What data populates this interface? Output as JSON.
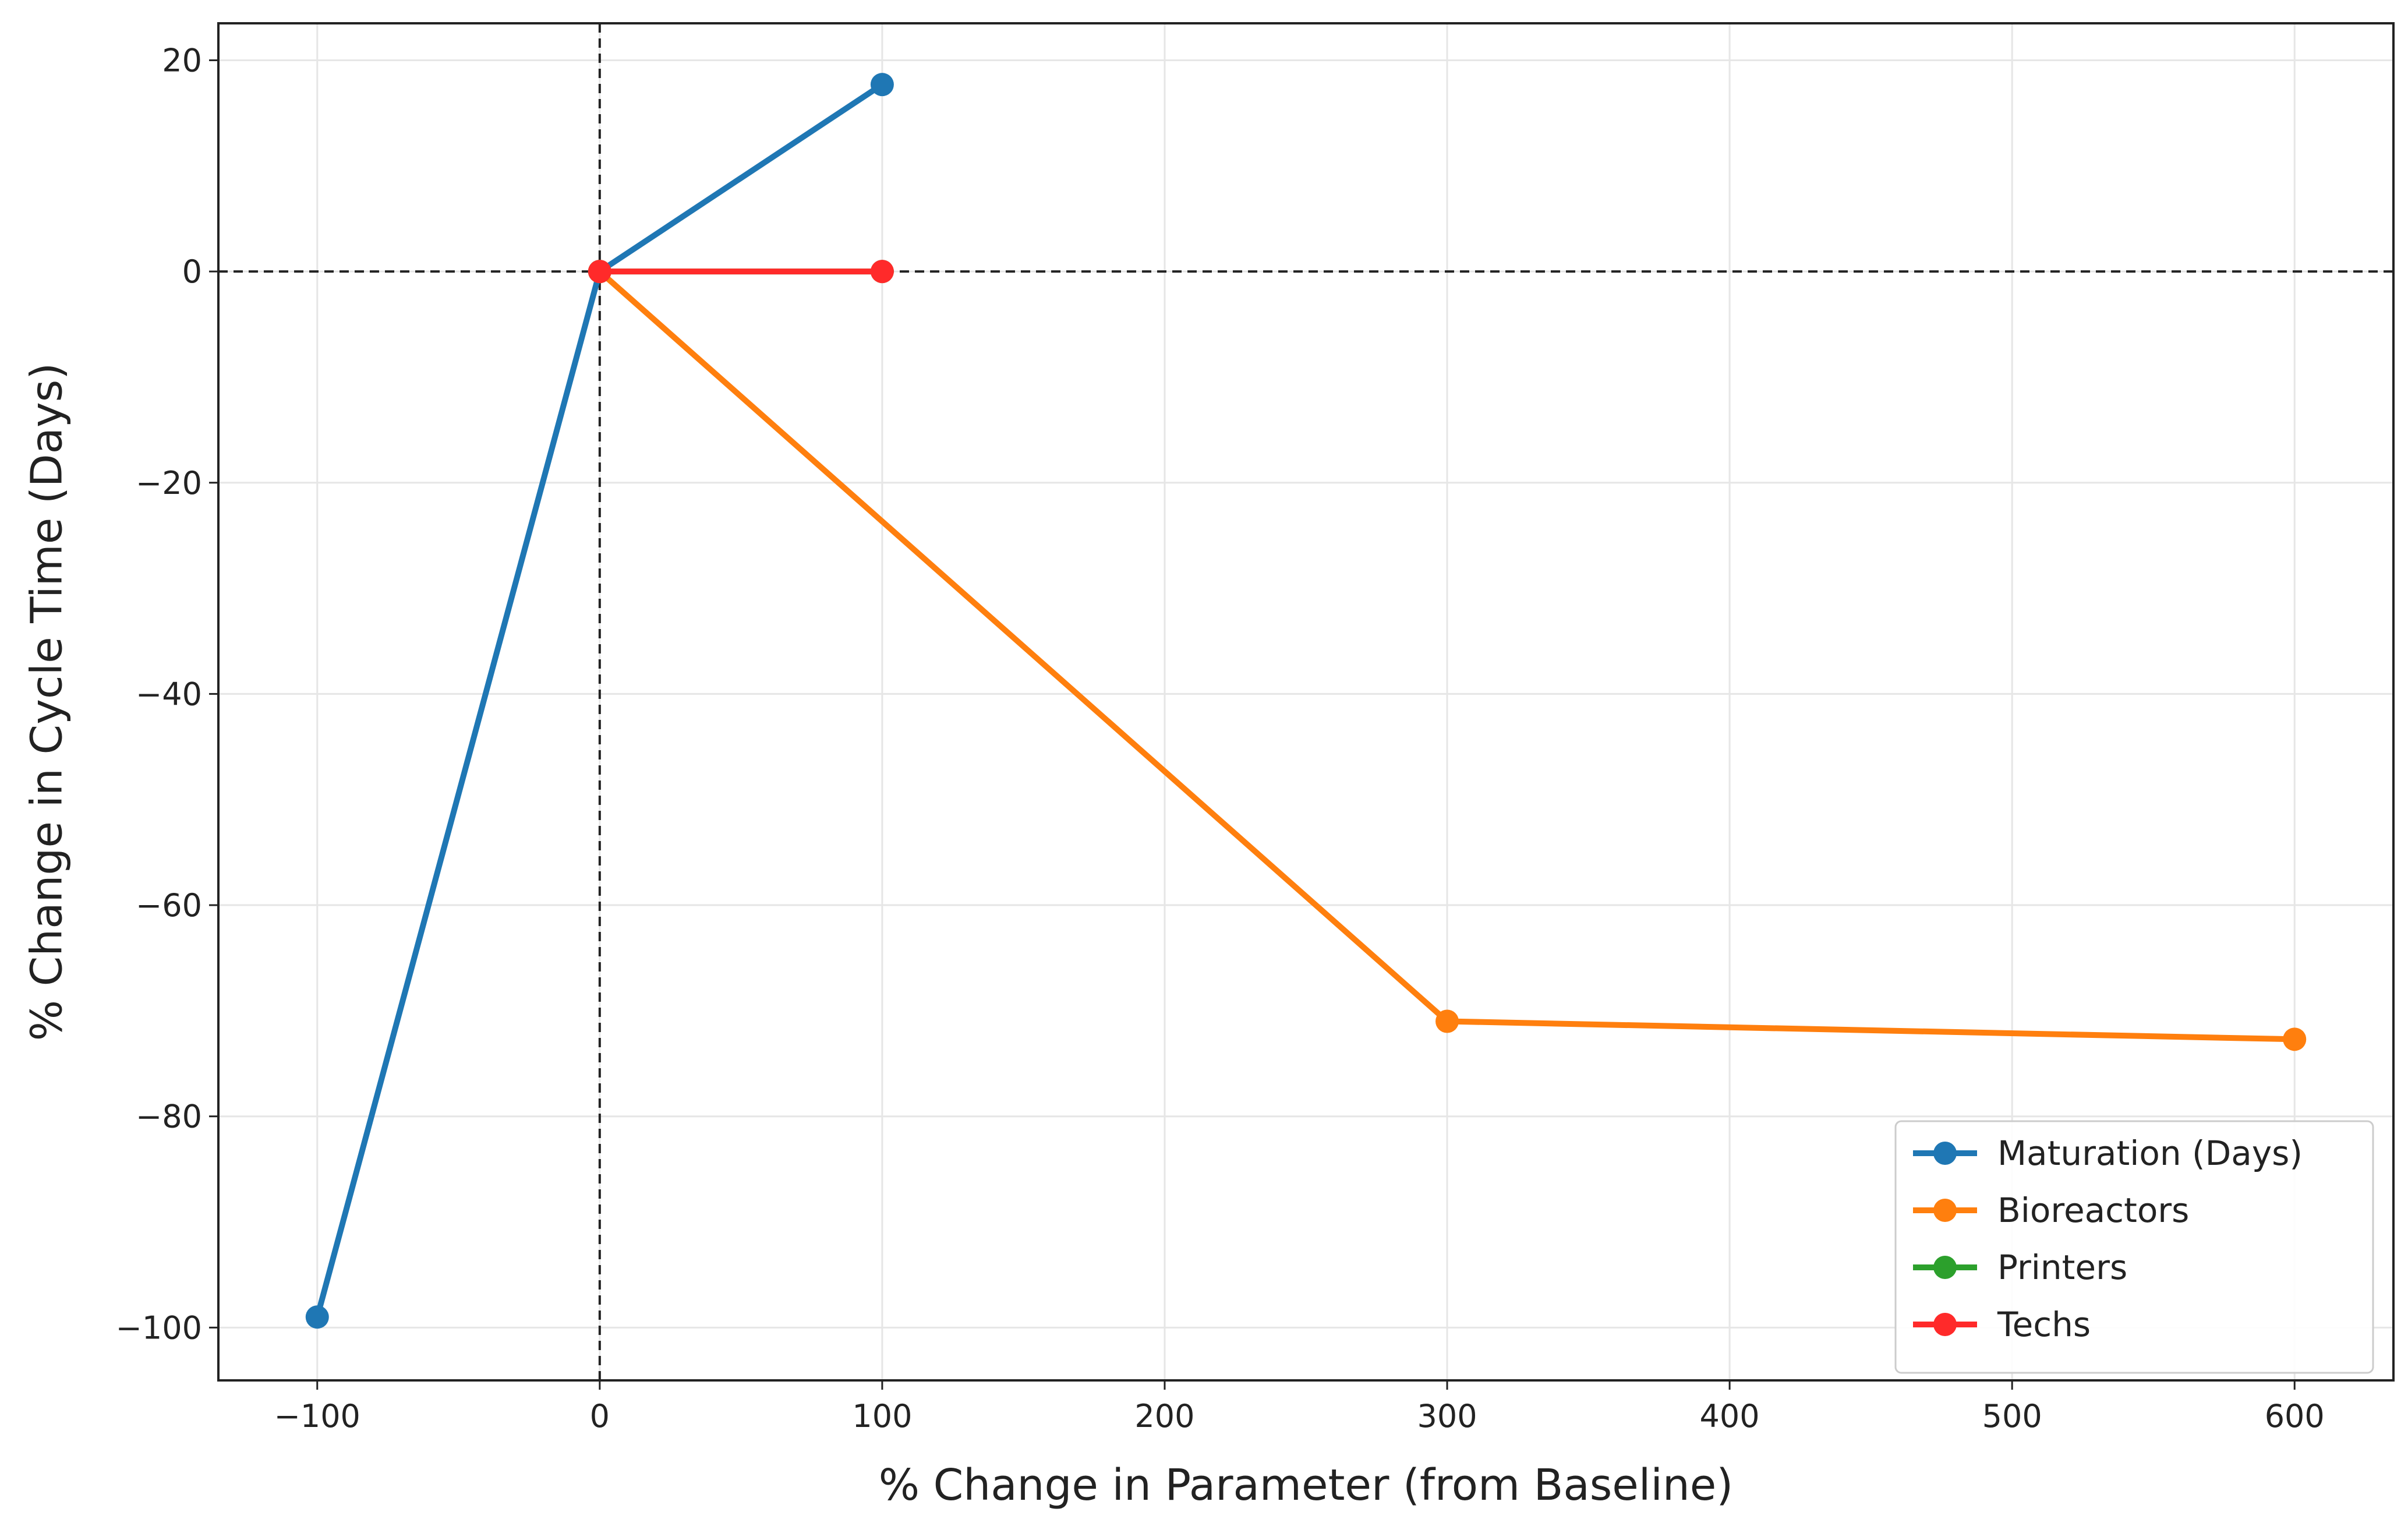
{
  "chart_data": {
    "type": "line",
    "title": "",
    "xlabel": "% Change in Parameter (from Baseline)",
    "ylabel": "% Change in Cycle Time (Days)",
    "xlim": [
      -135,
      635
    ],
    "ylim": [
      -105,
      23.5
    ],
    "xticks": [
      -100,
      0,
      100,
      200,
      300,
      400,
      500,
      600
    ],
    "xtick_labels": [
      "−100",
      "0",
      "100",
      "200",
      "300",
      "400",
      "500",
      "600"
    ],
    "yticks": [
      20,
      0,
      -20,
      -40,
      -60,
      -80,
      -100
    ],
    "ytick_labels": [
      "20",
      "0",
      "−20",
      "−40",
      "−60",
      "−80",
      "−100"
    ],
    "grid": true,
    "reference_lines": {
      "x": 0,
      "y": 0,
      "style": "dashed"
    },
    "legend_position": "lower-right",
    "series": [
      {
        "name": "Maturation (Days)",
        "color": "#1f77b4",
        "x": [
          -100,
          0,
          100
        ],
        "y": [
          -99,
          0,
          17.7
        ]
      },
      {
        "name": "Bioreactors",
        "color": "#ff7f0e",
        "x": [
          0,
          300,
          600
        ],
        "y": [
          0,
          -71,
          -72.7
        ]
      },
      {
        "name": "Printers",
        "color": "#2ca02c",
        "x": [
          0,
          100
        ],
        "y": [
          0,
          0
        ]
      },
      {
        "name": "Techs",
        "color": "#ff2a2a",
        "x": [
          0,
          100
        ],
        "y": [
          0,
          0
        ]
      }
    ]
  }
}
